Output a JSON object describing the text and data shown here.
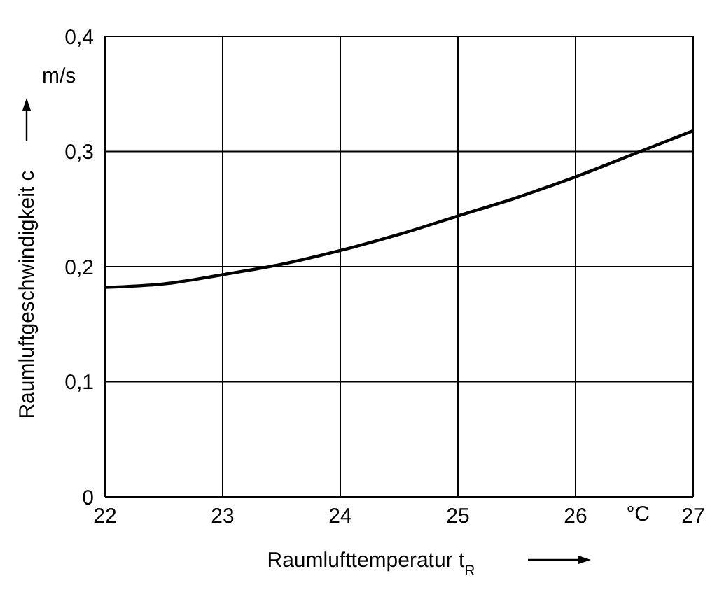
{
  "chart_data": {
    "type": "line",
    "xlabel": "Raumlufttemperatur t$_{R}$",
    "ylabel": "Raumluftgeschwindigkeit c",
    "annotations": [
      "°C",
      "m/s"
    ],
    "x": [
      22,
      22.5,
      23,
      23.5,
      24,
      24.5,
      25,
      25.5,
      26,
      26.5,
      27
    ],
    "series": [
      {
        "color": "#000000",
        "values": [
          0.182,
          0.185,
          0.193,
          0.202,
          0.214,
          0.228,
          0.244,
          0.26,
          0.278,
          0.298,
          0.318
        ]
      }
    ],
    "xlim": [
      22,
      27
    ],
    "xticks": [
      22,
      23,
      24,
      25,
      26,
      27
    ],
    "ylim": [
      0,
      0.4
    ],
    "yticks": [
      {
        "value": 0,
        "label": "0"
      },
      {
        "value": 0.1,
        "label": "0,1"
      },
      {
        "value": 0.2,
        "label": "0,2"
      },
      {
        "value": 0.3,
        "label": "0,3"
      },
      {
        "value": 0.4,
        "label": "0,4"
      }
    ],
    "grid": true,
    "legend": false,
    "marker": "none",
    "line_style": "solid"
  }
}
